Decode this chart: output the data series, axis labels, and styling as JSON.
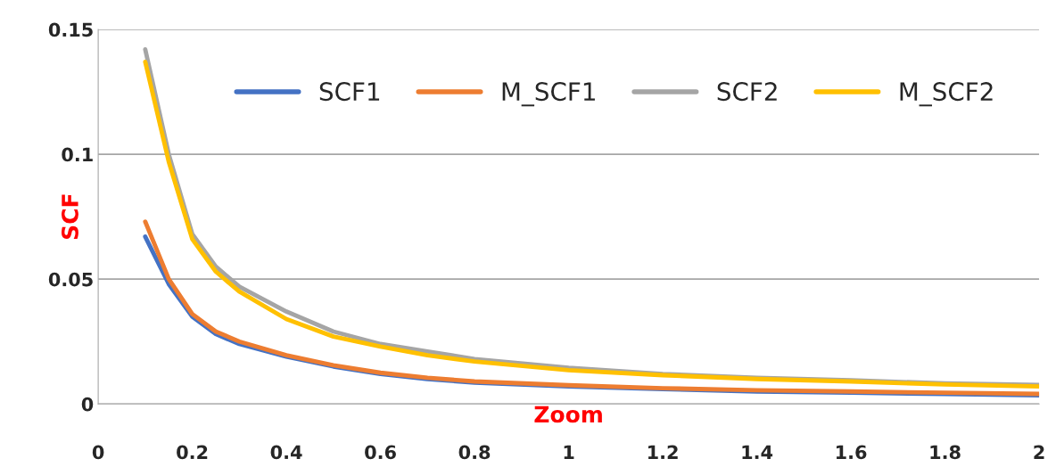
{
  "chart_data": {
    "type": "line",
    "xlabel": "Zoom",
    "ylabel": "SCF",
    "x": [
      0.1,
      0.15,
      0.2,
      0.25,
      0.3,
      0.4,
      0.5,
      0.6,
      0.7,
      0.8,
      1.0,
      1.2,
      1.4,
      1.6,
      1.8,
      2.0
    ],
    "series": [
      {
        "name": "SCF1",
        "color": "#4472c4",
        "values": [
          0.067,
          0.048,
          0.035,
          0.028,
          0.024,
          0.019,
          0.015,
          0.012,
          0.01,
          0.0085,
          0.007,
          0.006,
          0.005,
          0.0045,
          0.004,
          0.0035
        ]
      },
      {
        "name": "M_SCF1",
        "color": "#ed7d31",
        "values": [
          0.073,
          0.05,
          0.036,
          0.029,
          0.025,
          0.0195,
          0.0155,
          0.0125,
          0.0105,
          0.009,
          0.0075,
          0.0063,
          0.0055,
          0.005,
          0.0045,
          0.004
        ]
      },
      {
        "name": "SCF2",
        "color": "#a5a5a5",
        "values": [
          0.142,
          0.1,
          0.068,
          0.055,
          0.047,
          0.037,
          0.029,
          0.024,
          0.021,
          0.018,
          0.0145,
          0.012,
          0.0105,
          0.0095,
          0.0082,
          0.0076
        ]
      },
      {
        "name": "M_SCF2",
        "color": "#ffc000",
        "values": [
          0.137,
          0.097,
          0.066,
          0.053,
          0.045,
          0.034,
          0.027,
          0.023,
          0.0195,
          0.017,
          0.0135,
          0.0115,
          0.01,
          0.009,
          0.0078,
          0.007
        ]
      }
    ],
    "xlim": [
      0,
      2
    ],
    "xticks": [
      0,
      0.2,
      0.4,
      0.6,
      0.8,
      1,
      1.2,
      1.4,
      1.6,
      1.8,
      2
    ],
    "ylim": [
      0,
      0.15
    ],
    "yticks": [
      0,
      0.05,
      0.1,
      0.15
    ],
    "grid": "y",
    "legend": "top",
    "marker": "none",
    "line_style": "solid"
  }
}
